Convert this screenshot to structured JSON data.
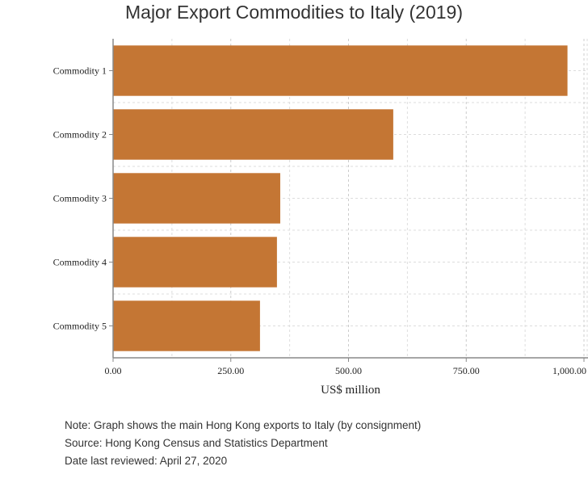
{
  "chart_data": {
    "type": "bar",
    "orientation": "horizontal",
    "title": "Major Export Commodities to Italy (2019)",
    "xlabel": "US$ million",
    "ylabel": "",
    "categories": [
      "Commodity 1",
      "Commodity 2",
      "Commodity 3",
      "Commodity 4",
      "Commodity 5"
    ],
    "values": [
      965,
      595,
      355,
      348,
      312
    ],
    "xlim": [
      0,
      1000
    ],
    "xticks": [
      0,
      250,
      500,
      750,
      1000
    ],
    "xtick_labels": [
      "0.00",
      "250.00",
      "500.00",
      "750.00",
      "1,000.00"
    ],
    "bar_color": "#C47634",
    "grid": true
  },
  "notes": {
    "line1": "Note: Graph shows the main Hong Kong exports to Italy (by consignment)",
    "line2": "Source: Hong Kong Census and Statistics Department",
    "line3": "Date last reviewed: April 27, 2020"
  }
}
